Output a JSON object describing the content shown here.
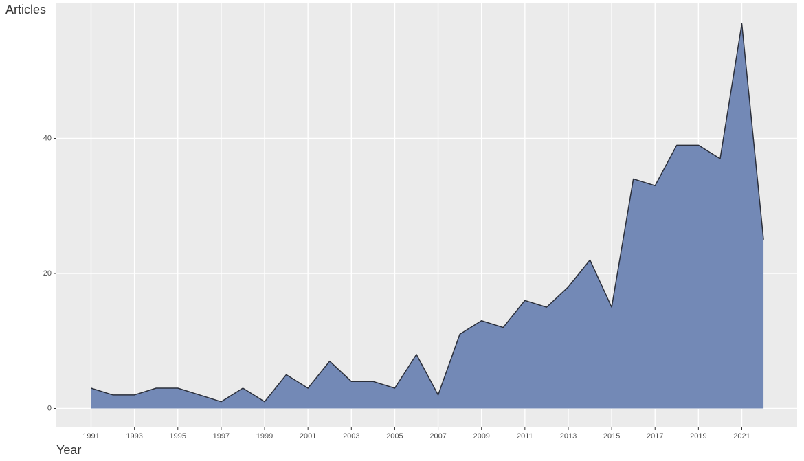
{
  "chart_data": {
    "type": "area",
    "x_label": "Year",
    "y_label": "Articles",
    "x": [
      1991,
      1992,
      1993,
      1994,
      1995,
      1996,
      1997,
      1998,
      1999,
      2000,
      2001,
      2002,
      2003,
      2004,
      2005,
      2006,
      2007,
      2008,
      2009,
      2010,
      2011,
      2012,
      2013,
      2014,
      2015,
      2016,
      2017,
      2018,
      2019,
      2020,
      2021,
      2022
    ],
    "values": [
      3,
      2,
      2,
      3,
      3,
      2,
      1,
      3,
      1,
      5,
      3,
      7,
      4,
      4,
      3,
      8,
      2,
      11,
      13,
      12,
      16,
      15,
      18,
      22,
      15,
      34,
      33,
      39,
      39,
      37,
      57,
      25
    ],
    "color": "#7389b6",
    "line_color": "#2b2f3a",
    "xlim": [
      1989.4,
      2023.55
    ],
    "xticks": [
      1991,
      1993,
      1995,
      1997,
      1999,
      2001,
      2003,
      2005,
      2007,
      2009,
      2011,
      2013,
      2015,
      2017,
      2019,
      2021
    ],
    "ylim": [
      -2.8,
      60
    ],
    "yticks": [
      0,
      20,
      40
    ],
    "grid": true
  }
}
